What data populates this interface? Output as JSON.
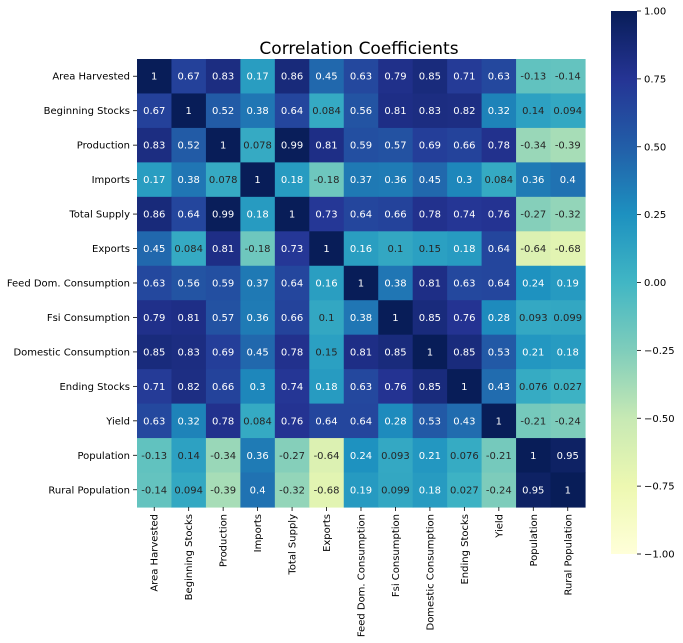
{
  "chart_data": {
    "type": "heatmap",
    "title": "Correlation Coefficients",
    "colormap": "YlGnBu",
    "vmin": -1.0,
    "vmax": 1.0,
    "annotate": true,
    "row_labels": [
      "Area Harvested",
      "Beginning Stocks",
      "Production",
      "Imports",
      "Total Supply",
      "Exports",
      "Feed Dom. Consumption",
      "Fsi Consumption",
      "Domestic Consumption",
      "Ending Stocks",
      "Yield",
      "Population",
      "Rural Population"
    ],
    "col_labels": [
      "Area Harvested",
      "Beginning Stocks",
      "Production",
      "Imports",
      "Total Supply",
      "Exports",
      "Feed Dom. Consumption",
      "Fsi Consumption",
      "Domestic Consumption",
      "Ending Stocks",
      "Yield",
      "Population",
      "Rural Population"
    ],
    "cell_labels": [
      [
        "1",
        "0.67",
        "0.83",
        "0.17",
        "0.86",
        "0.45",
        "0.63",
        "0.79",
        "0.85",
        "0.71",
        "0.63",
        "-0.13",
        "-0.14"
      ],
      [
        "0.67",
        "1",
        "0.52",
        "0.38",
        "0.64",
        "0.084",
        "0.56",
        "0.81",
        "0.83",
        "0.82",
        "0.32",
        "0.14",
        "0.094"
      ],
      [
        "0.83",
        "0.52",
        "1",
        "0.078",
        "0.99",
        "0.81",
        "0.59",
        "0.57",
        "0.69",
        "0.66",
        "0.78",
        "-0.34",
        "-0.39"
      ],
      [
        "0.17",
        "0.38",
        "0.078",
        "1",
        "0.18",
        "-0.18",
        "0.37",
        "0.36",
        "0.45",
        "0.3",
        "0.084",
        "0.36",
        "0.4"
      ],
      [
        "0.86",
        "0.64",
        "0.99",
        "0.18",
        "1",
        "0.73",
        "0.64",
        "0.66",
        "0.78",
        "0.74",
        "0.76",
        "-0.27",
        "-0.32"
      ],
      [
        "0.45",
        "0.084",
        "0.81",
        "-0.18",
        "0.73",
        "1",
        "0.16",
        "0.1",
        "0.15",
        "0.18",
        "0.64",
        "-0.64",
        "-0.68"
      ],
      [
        "0.63",
        "0.56",
        "0.59",
        "0.37",
        "0.64",
        "0.16",
        "1",
        "0.38",
        "0.81",
        "0.63",
        "0.64",
        "0.24",
        "0.19"
      ],
      [
        "0.79",
        "0.81",
        "0.57",
        "0.36",
        "0.66",
        "0.1",
        "0.38",
        "1",
        "0.85",
        "0.76",
        "0.28",
        "0.093",
        "0.099"
      ],
      [
        "0.85",
        "0.83",
        "0.69",
        "0.45",
        "0.78",
        "0.15",
        "0.81",
        "0.85",
        "1",
        "0.85",
        "0.53",
        "0.21",
        "0.18"
      ],
      [
        "0.71",
        "0.82",
        "0.66",
        "0.3",
        "0.74",
        "0.18",
        "0.63",
        "0.76",
        "0.85",
        "1",
        "0.43",
        "0.076",
        "0.027"
      ],
      [
        "0.63",
        "0.32",
        "0.78",
        "0.084",
        "0.76",
        "0.64",
        "0.64",
        "0.28",
        "0.53",
        "0.43",
        "1",
        "-0.21",
        "-0.24"
      ],
      [
        "-0.13",
        "0.14",
        "-0.34",
        "0.36",
        "-0.27",
        "-0.64",
        "0.24",
        "0.093",
        "0.21",
        "0.076",
        "-0.21",
        "1",
        "0.95"
      ],
      [
        "-0.14",
        "0.094",
        "-0.39",
        "0.4",
        "-0.32",
        "-0.68",
        "0.19",
        "0.099",
        "0.18",
        "0.027",
        "-0.24",
        "0.95",
        "1"
      ]
    ],
    "colorbar_ticks": [
      "1.00",
      "0.75",
      "0.50",
      "0.25",
      "0.00",
      "−0.25",
      "−0.50",
      "−0.75",
      "−1.00"
    ],
    "colorbar_tick_values": [
      1.0,
      0.75,
      0.5,
      0.25,
      0.0,
      -0.25,
      -0.5,
      -0.75,
      -1.0
    ]
  }
}
